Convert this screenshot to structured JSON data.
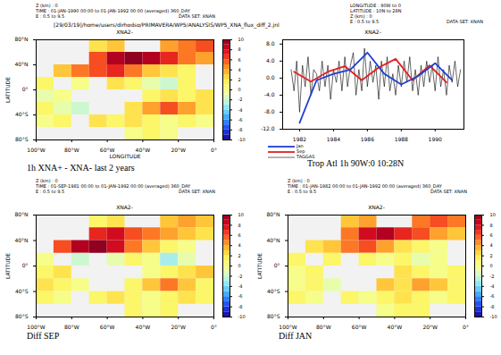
{
  "chart_data": [
    {
      "type": "heatmap",
      "subtitle": "[29/03/19]/home/users/dirhodso/PRIMAVERA/WP5/ANALYSIS/WP5_XNA_flux_diff_2.jnl",
      "title": "XNA2-",
      "annotations": [
        "Z (km) : 0",
        "TIME : 01-JAN-1990 00:00 to 01-JAN-1992 00:00 (averaged) 360_DAY",
        "E : 0.5 to 9.5",
        "DATA SET: XNAN"
      ],
      "caption": "1h XNA+ - XNA- last 2 years",
      "x_label": "LONGITUDE",
      "y_label": "LATITUDE",
      "xlim": [
        -100,
        0
      ],
      "ylim": [
        -80,
        80
      ],
      "xticks": [
        {
          "value": -100,
          "label": "100°W"
        },
        {
          "value": -80,
          "label": "80°W"
        },
        {
          "value": -60,
          "label": "60°W"
        },
        {
          "value": -40,
          "label": "40°W"
        },
        {
          "value": -20,
          "label": "20°W"
        },
        {
          "value": 0,
          "label": "0°"
        }
      ],
      "yticks": [
        {
          "value": -80,
          "label": "80°S"
        },
        {
          "value": -40,
          "label": "40°S"
        },
        {
          "value": 0,
          "label": "0°"
        },
        {
          "value": 40,
          "label": "40°N"
        },
        {
          "value": 80,
          "label": "80°N"
        }
      ],
      "lon_edges": [
        -100,
        -90,
        -80,
        -70,
        -60,
        -50,
        -40,
        -30,
        -20,
        -10,
        0
      ],
      "lat_edges": [
        80,
        60,
        40,
        20,
        0,
        -20,
        -40,
        -60,
        -80
      ],
      "values": [
        [
          null,
          null,
          null,
          2,
          3,
          null,
          null,
          4,
          5,
          6
        ],
        [
          null,
          null,
          null,
          6,
          9,
          10,
          9,
          7,
          5,
          4
        ],
        [
          null,
          3,
          5,
          6,
          7,
          5,
          3,
          2,
          1,
          null
        ],
        [
          1,
          null,
          0,
          null,
          2,
          1,
          -1,
          -2,
          1,
          null
        ],
        [
          -1,
          0,
          null,
          null,
          null,
          null,
          1,
          2,
          1,
          2
        ],
        [
          1,
          -1,
          -2,
          null,
          null,
          2,
          4,
          6,
          4,
          2
        ],
        [
          0,
          1,
          null,
          2,
          1,
          2,
          1,
          0,
          1,
          0
        ],
        [
          null,
          null,
          null,
          null,
          null,
          0,
          1,
          0,
          null,
          null
        ]
      ],
      "colorbar": {
        "range": [
          -10,
          10
        ],
        "ticks": [
          -10,
          -8,
          -6,
          -4,
          -2,
          0,
          2,
          4,
          6,
          8,
          10
        ]
      }
    },
    {
      "type": "line",
      "title": "XNA2-",
      "annotations": [
        "LONGITUDE : 90W to 0",
        "LATITUDE : 10N to 28N",
        "Z (km) : 0",
        "E : 0.5 to 9.5",
        "DATA SET: XNAN"
      ],
      "caption": "Trop Atl 1h 90W:0 10:28N",
      "xlim": [
        1981,
        1991.7
      ],
      "ylim": [
        -12,
        9
      ],
      "xticks": [
        1982,
        1984,
        1986,
        1988,
        1990
      ],
      "yticks": [
        {
          "value": -12,
          "label": "-12.0"
        },
        {
          "value": -8,
          "label": "-8.0"
        },
        {
          "value": -4,
          "label": "-4.0"
        },
        {
          "value": 0,
          "label": "0.0"
        },
        {
          "value": 4,
          "label": "4.0"
        },
        {
          "value": 8,
          "label": "8.0"
        }
      ],
      "legend": "bottom",
      "series": [
        {
          "name": "Jan",
          "color": "#1f3fd0",
          "x": [
            1982,
            1983,
            1984,
            1985,
            1986,
            1987,
            1988,
            1989,
            1990,
            1991
          ],
          "values": [
            -10.5,
            -0.5,
            1,
            2,
            6,
            1,
            -1.5,
            0.5,
            3.5,
            -0.5
          ]
        },
        {
          "name": "Sep",
          "color": "#e02020",
          "x": [
            1981.67,
            1982.67,
            1983.67,
            1984.67,
            1985.67,
            1986.67,
            1987.67,
            1988.67,
            1989.67,
            1990.67
          ],
          "values": [
            1.5,
            -0.8,
            1.5,
            2.8,
            -0.5,
            2.5,
            4.5,
            -0.5,
            3,
            -1
          ]
        },
        {
          "name": "TAGGAS",
          "color": "#000000",
          "x": [
            1981.5,
            1981.67,
            1981.83,
            1982,
            1982.17,
            1982.33,
            1982.5,
            1982.67,
            1982.83,
            1983,
            1983.17,
            1983.33,
            1983.5,
            1983.67,
            1983.83,
            1984,
            1984.17,
            1984.33,
            1984.5,
            1984.67,
            1984.83,
            1985,
            1985.17,
            1985.33,
            1985.5,
            1985.67,
            1985.83,
            1986,
            1986.17,
            1986.33,
            1986.5,
            1986.67,
            1986.83,
            1987,
            1987.17,
            1987.33,
            1987.5,
            1987.67,
            1987.83,
            1988,
            1988.17,
            1988.33,
            1988.5,
            1988.67,
            1988.83,
            1989,
            1989.17,
            1989.33,
            1989.5,
            1989.67,
            1989.83,
            1990,
            1990.17,
            1990.33,
            1990.5,
            1990.67,
            1990.83,
            1991,
            1991.17,
            1991.33,
            1991.5
          ],
          "values": [
            2,
            -3,
            4,
            -8,
            3,
            -2,
            5,
            -4,
            2,
            1,
            -3,
            4,
            -2,
            3,
            -5,
            2,
            -1,
            4,
            -3,
            5,
            -2,
            3,
            6,
            -4,
            2,
            -3,
            7,
            -2,
            4,
            -1,
            3,
            -5,
            4,
            -2,
            5,
            -3,
            1,
            -4,
            3,
            -2,
            4,
            -1,
            5,
            -3,
            2,
            -4,
            3,
            -2,
            4,
            -1,
            3,
            -3,
            5,
            -2,
            2,
            -4,
            3,
            -1,
            4,
            -2,
            2
          ]
        }
      ]
    },
    {
      "type": "heatmap",
      "title": "XNA2-",
      "annotations": [
        "Z (km) : 0",
        "TIME : 01-SEP-1981 00:00 to 01-JAN-1992 00:00 (averaged) 360_DAY",
        "E : 0.5 to 9.5",
        "DATA SET: XNAN"
      ],
      "caption": "Diff SEP",
      "y_label": "LATITUDE",
      "xlim": [
        -100,
        0
      ],
      "ylim": [
        -80,
        80
      ],
      "xticks": [
        {
          "value": -100,
          "label": "100°W"
        },
        {
          "value": -80,
          "label": "80°W"
        },
        {
          "value": -60,
          "label": "60°W"
        },
        {
          "value": -40,
          "label": "40°W"
        },
        {
          "value": -20,
          "label": "20°W"
        },
        {
          "value": 0,
          "label": "0°"
        }
      ],
      "yticks": [
        {
          "value": -80,
          "label": "80°S"
        },
        {
          "value": -40,
          "label": "40°S"
        },
        {
          "value": 0,
          "label": "0°"
        },
        {
          "value": 40,
          "label": "40°N"
        },
        {
          "value": 80,
          "label": "80°N"
        }
      ],
      "lon_edges": [
        -100,
        -90,
        -80,
        -70,
        -60,
        -50,
        -40,
        -30,
        -20,
        -10,
        0
      ],
      "lat_edges": [
        80,
        60,
        40,
        20,
        0,
        -20,
        -40,
        -60,
        -80
      ],
      "values": [
        [
          null,
          null,
          null,
          1,
          2,
          null,
          null,
          3,
          4,
          3
        ],
        [
          null,
          null,
          null,
          7,
          8,
          6,
          5,
          4,
          3,
          2
        ],
        [
          null,
          6,
          9,
          10,
          8,
          5,
          3,
          1,
          0,
          null
        ],
        [
          0,
          null,
          -2,
          null,
          -1,
          1,
          0,
          -3,
          -1,
          null
        ],
        [
          1,
          2,
          null,
          null,
          null,
          null,
          0,
          1,
          2,
          3
        ],
        [
          2,
          1,
          0,
          null,
          null,
          1,
          3,
          5,
          3,
          1
        ],
        [
          1,
          0,
          null,
          1,
          2,
          1,
          0,
          1,
          2,
          1
        ],
        [
          null,
          null,
          null,
          null,
          null,
          1,
          0,
          1,
          null,
          null
        ]
      ],
      "colorbar": {
        "range": [
          -10,
          10
        ],
        "ticks": [
          -10,
          -8,
          -6,
          -4,
          -2,
          0,
          2,
          4,
          6,
          8,
          10
        ]
      }
    },
    {
      "type": "heatmap",
      "title": "XNA2-",
      "annotations": [
        "Z (km) : 0",
        "TIME : 01-JAN-1982 00:00 to 01-JAN-1992 00:00 (averaged) 360_DAY",
        "E : 0.5 to 9.5",
        "DATA SET: XNAN"
      ],
      "caption": "Diff JAN",
      "y_label": "LATITUDE",
      "xlim": [
        -100,
        0
      ],
      "ylim": [
        -80,
        80
      ],
      "xticks": [
        {
          "value": -100,
          "label": "100°W"
        },
        {
          "value": -80,
          "label": "80°W"
        },
        {
          "value": -60,
          "label": "60°W"
        },
        {
          "value": -40,
          "label": "40°W"
        },
        {
          "value": -20,
          "label": "20°W"
        },
        {
          "value": 0,
          "label": "0°"
        }
      ],
      "yticks": [
        {
          "value": -80,
          "label": "80°S"
        },
        {
          "value": -40,
          "label": "40°S"
        },
        {
          "value": 0,
          "label": "0°"
        },
        {
          "value": 40,
          "label": "40°N"
        },
        {
          "value": 80,
          "label": "80°N"
        }
      ],
      "lon_edges": [
        -100,
        -90,
        -80,
        -70,
        -60,
        -50,
        -40,
        -30,
        -20,
        -10,
        0
      ],
      "lat_edges": [
        80,
        60,
        40,
        20,
        0,
        -20,
        -40,
        -60,
        -80
      ],
      "values": [
        [
          null,
          null,
          null,
          3,
          4,
          null,
          null,
          5,
          6,
          5
        ],
        [
          null,
          null,
          null,
          5,
          8,
          9,
          7,
          6,
          4,
          3
        ],
        [
          null,
          2,
          3,
          5,
          6,
          4,
          2,
          1,
          0,
          null
        ],
        [
          1,
          null,
          1,
          null,
          1,
          0,
          1,
          -1,
          0,
          null
        ],
        [
          0,
          1,
          null,
          null,
          null,
          null,
          2,
          1,
          0,
          1
        ],
        [
          0,
          1,
          -1,
          null,
          null,
          3,
          2,
          4,
          3,
          1
        ],
        [
          1,
          0,
          null,
          1,
          0,
          1,
          2,
          1,
          0,
          1
        ],
        [
          null,
          null,
          null,
          null,
          null,
          0,
          1,
          1,
          null,
          null
        ]
      ],
      "colorbar": {
        "range": [
          -10,
          10
        ],
        "ticks": [
          -10,
          -8,
          -6,
          -4,
          -2,
          0,
          2,
          4,
          6,
          8,
          10
        ]
      }
    }
  ]
}
